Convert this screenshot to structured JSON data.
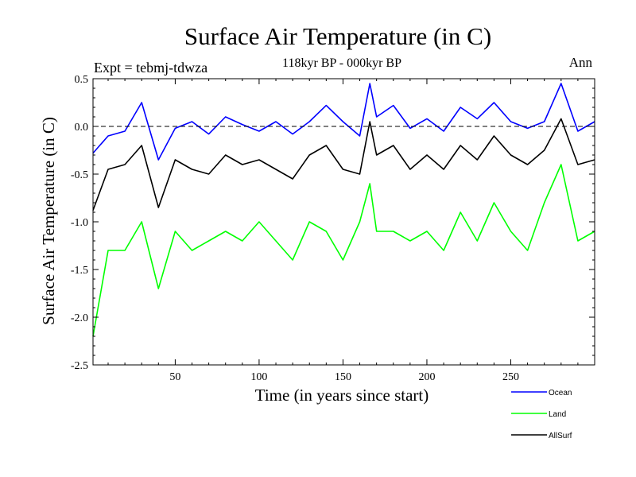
{
  "chart_data": {
    "type": "line",
    "title": "Surface Air Temperature (in C)",
    "subtitle": "118kyr BP - 000kyr BP",
    "expt_label": "Expt = tebmj-tdwza",
    "season_label": "Ann",
    "xlabel": "Time (in years since start)",
    "ylabel": "Surface Air Temperature (in C)",
    "xlim": [
      1,
      300
    ],
    "ylim": [
      -2.5,
      0.5
    ],
    "xticks": [
      50,
      100,
      150,
      200,
      250
    ],
    "xtick_labels": [
      "50",
      "100",
      "150",
      "200",
      "250"
    ],
    "yticks": [
      -2.5,
      -2.0,
      -1.5,
      -1.0,
      -0.5,
      0.0,
      0.5
    ],
    "ytick_labels": [
      "-2.5",
      "-2.0",
      "-1.5",
      "-1.0",
      "-0.5",
      "0.0",
      "0.5"
    ],
    "reference_line": 0.0,
    "legend_position": "bottom-right, outside plot",
    "series": [
      {
        "name": "Ocean",
        "color": "#0000ff",
        "x": [
          1,
          10,
          20,
          30,
          40,
          50,
          60,
          70,
          80,
          90,
          100,
          110,
          120,
          130,
          140,
          150,
          160,
          166,
          170,
          180,
          190,
          200,
          210,
          220,
          230,
          240,
          250,
          260,
          270,
          280,
          290,
          300
        ],
        "values": [
          -0.28,
          -0.1,
          -0.05,
          0.25,
          -0.35,
          -0.02,
          0.05,
          -0.08,
          0.1,
          0.02,
          -0.05,
          0.05,
          -0.08,
          0.05,
          0.22,
          0.05,
          -0.1,
          0.45,
          0.1,
          0.22,
          -0.02,
          0.08,
          -0.05,
          0.2,
          0.08,
          0.25,
          0.05,
          -0.02,
          0.05,
          0.45,
          -0.05,
          0.05
        ]
      },
      {
        "name": "Land",
        "color": "#00ff00",
        "x": [
          1,
          10,
          20,
          30,
          40,
          50,
          60,
          70,
          80,
          90,
          100,
          110,
          120,
          130,
          140,
          150,
          160,
          166,
          170,
          180,
          190,
          200,
          210,
          220,
          230,
          240,
          250,
          260,
          270,
          280,
          290,
          300
        ],
        "values": [
          -2.2,
          -1.3,
          -1.3,
          -1.0,
          -1.7,
          -1.1,
          -1.3,
          -1.2,
          -1.1,
          -1.2,
          -1.0,
          -1.2,
          -1.4,
          -1.0,
          -1.1,
          -1.4,
          -1.0,
          -0.6,
          -1.1,
          -1.1,
          -1.2,
          -1.1,
          -1.3,
          -0.9,
          -1.2,
          -0.8,
          -1.1,
          -1.3,
          -0.8,
          -0.4,
          -1.2,
          -1.1
        ]
      },
      {
        "name": "AllSurf",
        "color": "#000000",
        "x": [
          1,
          10,
          20,
          30,
          40,
          50,
          60,
          70,
          80,
          90,
          100,
          110,
          120,
          130,
          140,
          150,
          160,
          166,
          170,
          180,
          190,
          200,
          210,
          220,
          230,
          240,
          250,
          260,
          270,
          280,
          290,
          300
        ],
        "values": [
          -0.88,
          -0.45,
          -0.4,
          -0.2,
          -0.85,
          -0.35,
          -0.45,
          -0.5,
          -0.3,
          -0.4,
          -0.35,
          -0.45,
          -0.55,
          -0.3,
          -0.2,
          -0.45,
          -0.5,
          0.05,
          -0.3,
          -0.2,
          -0.45,
          -0.3,
          -0.45,
          -0.2,
          -0.35,
          -0.1,
          -0.3,
          -0.4,
          -0.25,
          0.08,
          -0.4,
          -0.35
        ]
      }
    ]
  }
}
